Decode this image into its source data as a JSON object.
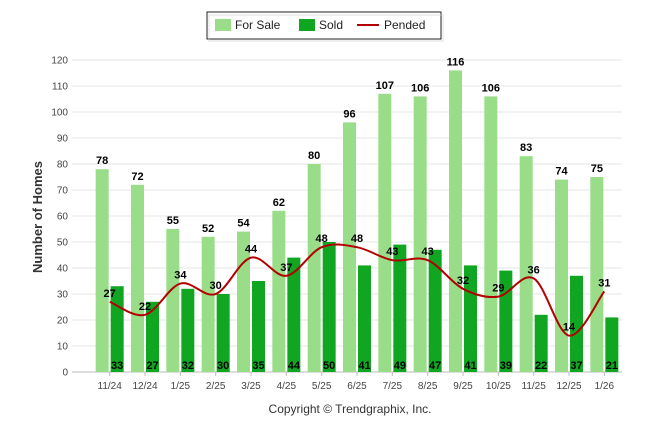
{
  "chart_data": {
    "type": "bar",
    "ylabel": "Number of Homes",
    "ylim": [
      0,
      120
    ],
    "yticks": [
      0,
      10,
      20,
      30,
      40,
      50,
      60,
      70,
      80,
      90,
      100,
      110,
      120
    ],
    "grid": true,
    "legend_position": "top-center",
    "categories": [
      "11/24",
      "12/24",
      "1/25",
      "2/25",
      "3/25",
      "4/25",
      "5/25",
      "6/25",
      "7/25",
      "8/25",
      "9/25",
      "10/25",
      "11/25",
      "12/25",
      "1/26"
    ],
    "series": [
      {
        "name": "For Sale",
        "kind": "bar",
        "color": "#99dd88",
        "values": [
          78,
          72,
          55,
          52,
          54,
          62,
          80,
          96,
          107,
          106,
          116,
          106,
          83,
          74,
          75
        ]
      },
      {
        "name": "Sold",
        "kind": "bar",
        "color": "#11a622",
        "values": [
          33,
          27,
          32,
          30,
          35,
          44,
          50,
          41,
          49,
          47,
          41,
          39,
          22,
          37,
          21
        ]
      },
      {
        "name": "Pended",
        "kind": "line",
        "color": "#b30000",
        "values": [
          27,
          22,
          34,
          30,
          44,
          37,
          48,
          48,
          43,
          43,
          32,
          29,
          36,
          14,
          31
        ]
      }
    ]
  },
  "footer": {
    "credit": "Copyright © Trendgraphix, Inc."
  }
}
